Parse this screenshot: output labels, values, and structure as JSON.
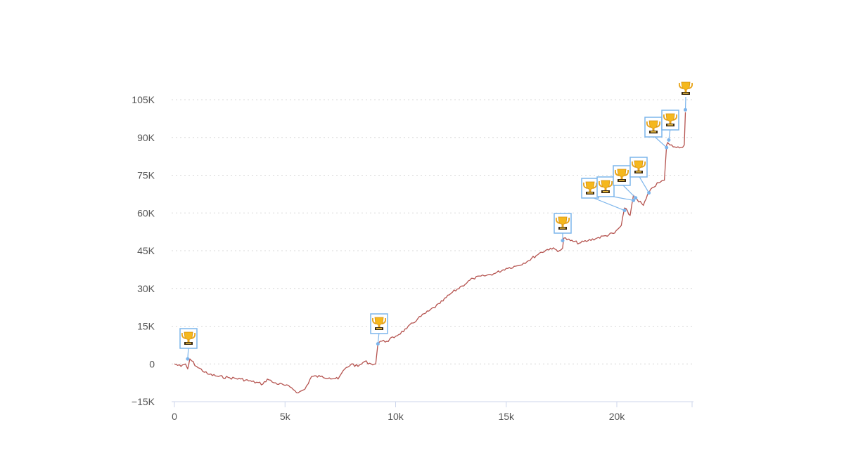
{
  "chart_data": {
    "type": "line",
    "title": "",
    "xlabel": "",
    "ylabel": "",
    "xlim": [
      -300,
      23400
    ],
    "ylim": [
      -15000,
      105000
    ],
    "x_ticks": [
      0,
      5000,
      10000,
      15000,
      20000
    ],
    "x_tick_labels": [
      "0",
      "5k",
      "10k",
      "15k",
      "20k"
    ],
    "y_ticks": [
      -15000,
      0,
      15000,
      30000,
      45000,
      60000,
      75000,
      90000,
      105000
    ],
    "y_tick_labels": [
      "−15K",
      "0",
      "15K",
      "30K",
      "45K",
      "60K",
      "75K",
      "90K",
      "105K"
    ],
    "grid": "horizontal dotted",
    "series": [
      {
        "color": "#b5534f",
        "x": [
          0,
          300,
          500,
          600,
          700,
          1000,
          1500,
          2000,
          2500,
          3000,
          3500,
          4000,
          4200,
          4500,
          5000,
          5300,
          5600,
          5900,
          6200,
          6600,
          7000,
          7400,
          7700,
          8000,
          8300,
          8600,
          8900,
          9100,
          9200,
          9300,
          9600,
          10000,
          10500,
          11000,
          11500,
          12000,
          12500,
          13000,
          13500,
          14000,
          14500,
          15000,
          15500,
          16000,
          16500,
          17000,
          17400,
          17550,
          17600,
          17900,
          18300,
          18700,
          19100,
          19500,
          19900,
          20200,
          20350,
          20600,
          20750,
          20850,
          21200,
          21450,
          21600,
          21900,
          22150,
          22250,
          22300,
          22400,
          22700,
          22900,
          23050,
          23100
        ],
        "y": [
          0,
          -1000,
          0,
          -2000,
          2000,
          -1000,
          -4000,
          -5000,
          -5500,
          -6000,
          -7000,
          -8000,
          -6000,
          -7500,
          -8500,
          -9500,
          -11500,
          -10000,
          -5000,
          -5000,
          -5500,
          -6000,
          -2000,
          0,
          -1000,
          1000,
          0,
          0,
          8000,
          9000,
          9000,
          11000,
          14000,
          18000,
          21000,
          24000,
          28000,
          31000,
          34000,
          35000,
          36000,
          38000,
          39000,
          41000,
          44000,
          46000,
          45000,
          46000,
          50000,
          49000,
          48000,
          49000,
          50000,
          51000,
          52000,
          55000,
          62000,
          59000,
          67000,
          66000,
          63000,
          68000,
          70000,
          72000,
          73000,
          87000,
          88000,
          87000,
          86000,
          86000,
          87000,
          100000
        ]
      }
    ],
    "trophy_markers": {
      "icon": "trophy-icon",
      "points": [
        {
          "x": 600,
          "y": 2000
        },
        {
          "x": 9200,
          "y": 8000
        },
        {
          "x": 17550,
          "y": 49000
        },
        {
          "x": 20350,
          "y": 61000
        },
        {
          "x": 20750,
          "y": 65000
        },
        {
          "x": 20850,
          "y": 66000
        },
        {
          "x": 21450,
          "y": 68000
        },
        {
          "x": 22250,
          "y": 86000
        },
        {
          "x": 22350,
          "y": 89000
        },
        {
          "x": 23100,
          "y": 101000
        }
      ]
    },
    "colors": {
      "line": "#b5534f",
      "marker_border": "#7cb5ec",
      "grid": "#d8d8d8",
      "axis": "#ccd6eb",
      "tick_label": "#555555"
    }
  }
}
